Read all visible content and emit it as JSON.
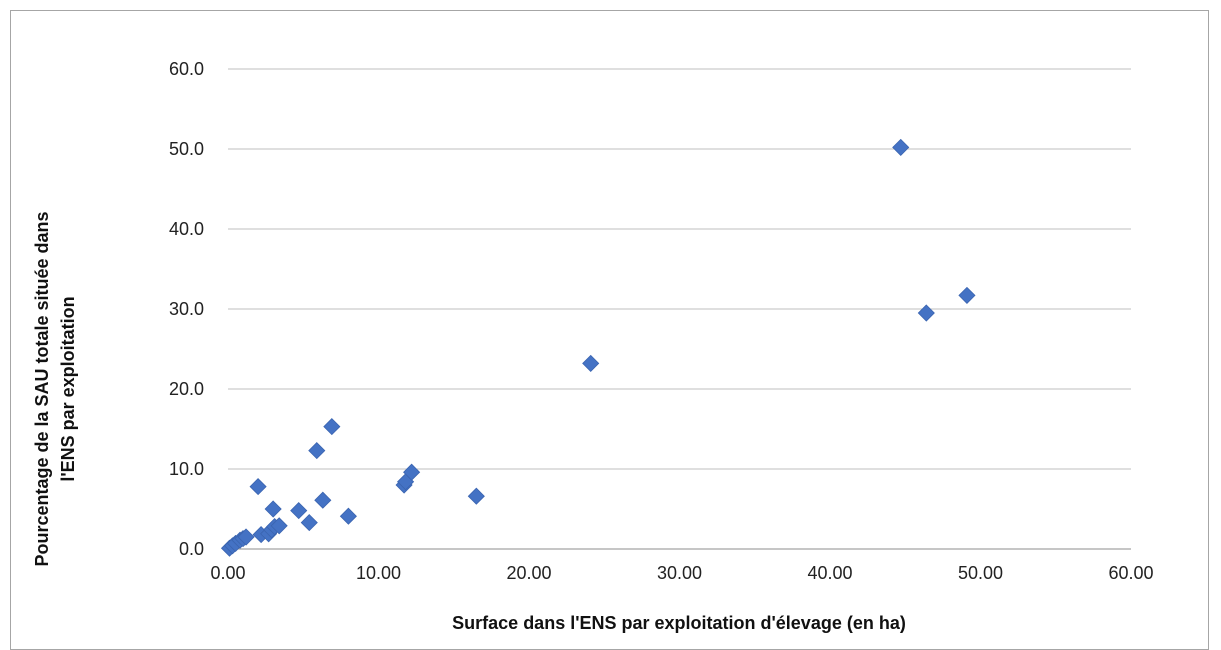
{
  "chart_data": {
    "type": "scatter",
    "xlabel": "Surface dans l'ENS par exploitation d'élevage (en ha)",
    "ylabel_lines": [
      "Pourcentage de la SAU totale située dans",
      "l'ENS par exploitation"
    ],
    "xlim": [
      0,
      60
    ],
    "ylim": [
      0,
      60
    ],
    "x_ticks": [
      0,
      10,
      20,
      30,
      40,
      50,
      60
    ],
    "x_tick_labels": [
      "0.00",
      "10.00",
      "20.00",
      "30.00",
      "40.00",
      "50.00",
      "60.00"
    ],
    "y_ticks": [
      0,
      10,
      20,
      30,
      40,
      50,
      60
    ],
    "y_tick_labels": [
      "0.0",
      "10.0",
      "20.0",
      "30.0",
      "40.0",
      "50.0",
      "60.0"
    ],
    "grid": "horizontal",
    "marker": "diamond",
    "color": "#4472c4",
    "points": [
      {
        "x": 0.1,
        "y": 0.1
      },
      {
        "x": 0.3,
        "y": 0.4
      },
      {
        "x": 0.5,
        "y": 0.7
      },
      {
        "x": 0.8,
        "y": 1.1
      },
      {
        "x": 1.0,
        "y": 1.3
      },
      {
        "x": 1.2,
        "y": 1.5
      },
      {
        "x": 2.0,
        "y": 7.8
      },
      {
        "x": 2.2,
        "y": 1.8
      },
      {
        "x": 2.7,
        "y": 1.9
      },
      {
        "x": 2.9,
        "y": 2.4
      },
      {
        "x": 3.0,
        "y": 5.0
      },
      {
        "x": 3.1,
        "y": 2.8
      },
      {
        "x": 3.4,
        "y": 2.9
      },
      {
        "x": 4.7,
        "y": 4.8
      },
      {
        "x": 5.4,
        "y": 3.3
      },
      {
        "x": 5.9,
        "y": 12.3
      },
      {
        "x": 6.3,
        "y": 6.1
      },
      {
        "x": 6.9,
        "y": 15.3
      },
      {
        "x": 8.0,
        "y": 4.1
      },
      {
        "x": 11.7,
        "y": 8.0
      },
      {
        "x": 11.8,
        "y": 8.4
      },
      {
        "x": 12.2,
        "y": 9.6
      },
      {
        "x": 16.5,
        "y": 6.6
      },
      {
        "x": 24.1,
        "y": 23.2
      },
      {
        "x": 44.7,
        "y": 50.2
      },
      {
        "x": 46.4,
        "y": 29.5
      },
      {
        "x": 49.1,
        "y": 31.7
      }
    ]
  }
}
